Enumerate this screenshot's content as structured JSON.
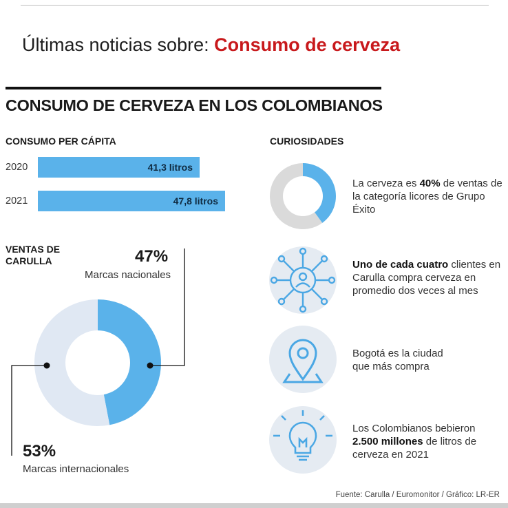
{
  "header": {
    "prefix": "Últimas noticias sobre: ",
    "topic": "Consumo de cerveza"
  },
  "chart_data": [
    {
      "type": "bar",
      "title": "CONSUMO DE CERVEZA EN LOS COLOMBIANOS",
      "subtitle": "CONSUMO PER CÁPITA",
      "categories": [
        "2020",
        "2021"
      ],
      "values": [
        41.3,
        47.8
      ],
      "value_labels": [
        "41,3 litros",
        "47,8 litros"
      ],
      "color": "#5ab2ea"
    },
    {
      "type": "pie",
      "title": "VENTAS DE CARULLA",
      "labels": [
        "Marcas nacionales",
        "Marcas internacionales"
      ],
      "values": [
        47,
        53
      ],
      "value_labels": [
        "47%",
        "53%"
      ],
      "colors": [
        "#5ab2ea",
        "#e0e8f3"
      ]
    },
    {
      "type": "pie",
      "values": [
        40,
        60
      ],
      "colors": [
        "#5ab2ea",
        "#dadada"
      ]
    }
  ],
  "curiosidades": {
    "title": "CURIOSIDADES",
    "items": [
      {
        "icon": "donut-40-icon",
        "before": "La cerveza es ",
        "bold": "40%",
        "after": " de ventas de la categoría licores de Grupo Éxito"
      },
      {
        "icon": "network-user-icon",
        "before": "",
        "bold": "Uno de cada cuatro",
        "after": " clientes en Carulla compra cerveza en promedio dos veces al mes"
      },
      {
        "icon": "location-pin-icon",
        "before": "Bogotá es la ciudad que más compra",
        "bold": "",
        "after": ""
      },
      {
        "icon": "lightbulb-icon",
        "before": "Los Colombianos bebieron ",
        "bold": "2.500 millones",
        "after": " de litros de cerveza en 2021"
      }
    ]
  },
  "source": "Fuente: Carulla / Euromonitor / Gráfico: LR-ER",
  "colors": {
    "accent": "#c8191c",
    "bar": "#5ab2ea",
    "icon_stroke": "#4aa7e4",
    "icon_bg": "#e5ebf2"
  }
}
